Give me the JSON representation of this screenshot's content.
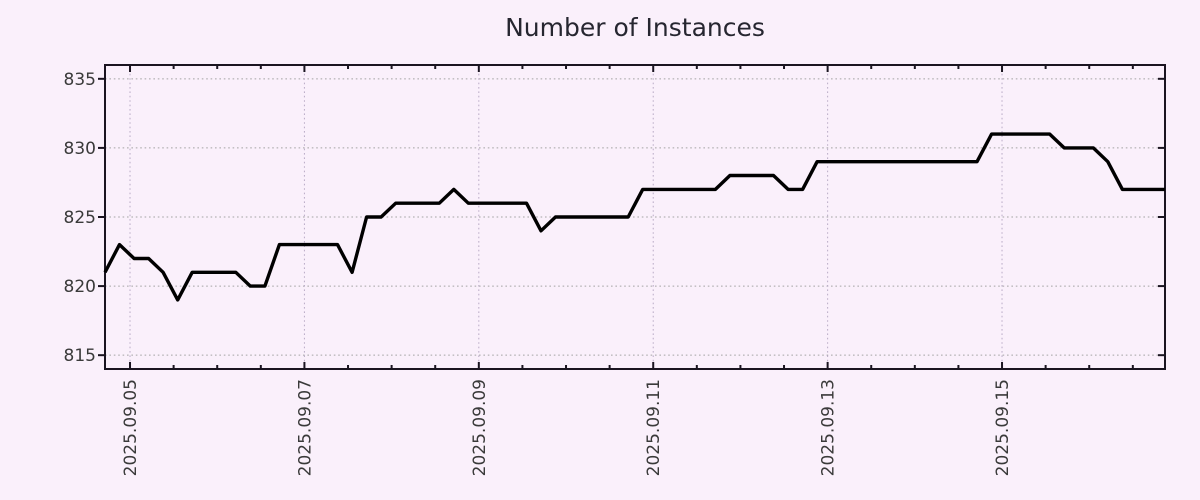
{
  "title": "Number of Instances",
  "colors": {
    "background": "#faf0fb",
    "line": "#000000",
    "frame": "#1a1420",
    "grid_horizontal": "#a3a3a3",
    "grid_vertical": "#b9abc6",
    "tick_text": "#3a3a3a",
    "title_text": "#262630"
  },
  "chart_data": {
    "type": "line",
    "title": "Number of Instances",
    "xlabel": "",
    "ylabel": "",
    "grid": true,
    "legend_position": "none",
    "ylim": [
      814,
      836
    ],
    "yticks": [
      815,
      820,
      825,
      830,
      835
    ],
    "xticks": [
      "2025.09.05",
      "2025.09.07",
      "2025.09.09",
      "2025.09.11",
      "2025.09.13",
      "2025.09.15"
    ],
    "xtick_interval_days": 2,
    "points_per_day": 6,
    "xtick_first_frac": 0.0236,
    "xtick_step_frac": 0.16453,
    "x_minor_per_major": 4,
    "point_step_frac": 0.013711,
    "values": [
      821,
      823,
      822,
      822,
      821,
      819,
      821,
      821,
      821,
      821,
      820,
      820,
      823,
      823,
      823,
      823,
      823,
      821,
      825,
      825,
      826,
      826,
      826,
      826,
      827,
      826,
      826,
      826,
      826,
      826,
      824,
      825,
      825,
      825,
      825,
      825,
      825,
      827,
      827,
      827,
      827,
      827,
      827,
      828,
      828,
      828,
      828,
      827,
      827,
      829,
      829,
      829,
      829,
      829,
      829,
      829,
      829,
      829,
      829,
      829,
      829,
      831,
      831,
      831,
      831,
      831,
      830,
      830,
      830,
      829,
      827,
      827,
      827,
      827
    ]
  }
}
